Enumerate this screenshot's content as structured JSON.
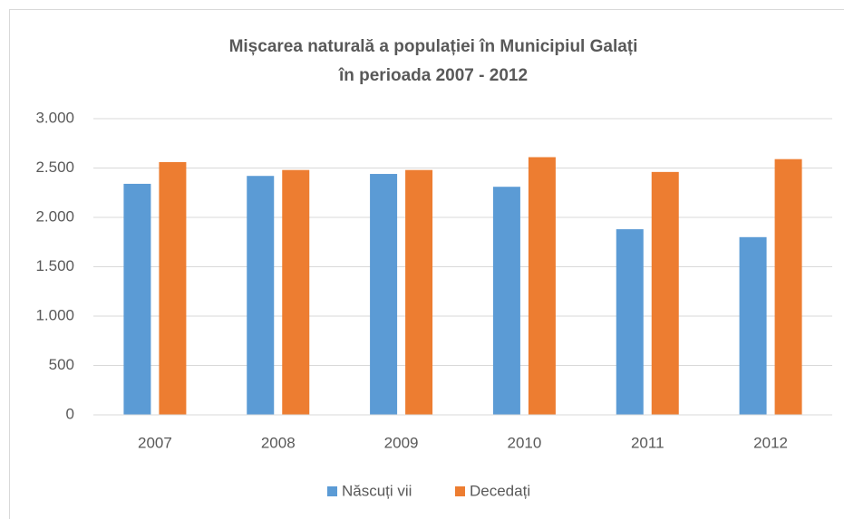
{
  "chart_data": {
    "type": "bar",
    "title": [
      "Mișcarea naturală a populației în Municipiul Galați",
      "în perioada 2007 - 2012"
    ],
    "categories": [
      "2007",
      "2008",
      "2009",
      "2010",
      "2011",
      "2012"
    ],
    "series": [
      {
        "name": "Născuți vii",
        "color": "#5b9bd5",
        "values": [
          2340,
          2420,
          2440,
          2310,
          1880,
          1800
        ]
      },
      {
        "name": "Decedați",
        "color": "#ed7d31",
        "values": [
          2560,
          2480,
          2480,
          2610,
          2460,
          2590
        ]
      }
    ],
    "ylim": [
      0,
      3000
    ],
    "yticks": [
      0,
      500,
      {
        "value": 1000,
        "label": "1.000"
      },
      {
        "value": 1500,
        "label": "1.500"
      },
      {
        "value": 2000,
        "label": "2.000"
      },
      {
        "value": 2500,
        "label": "2.500"
      },
      {
        "value": 3000,
        "label": "3.000"
      }
    ],
    "grid": true,
    "legend": "bottom"
  }
}
